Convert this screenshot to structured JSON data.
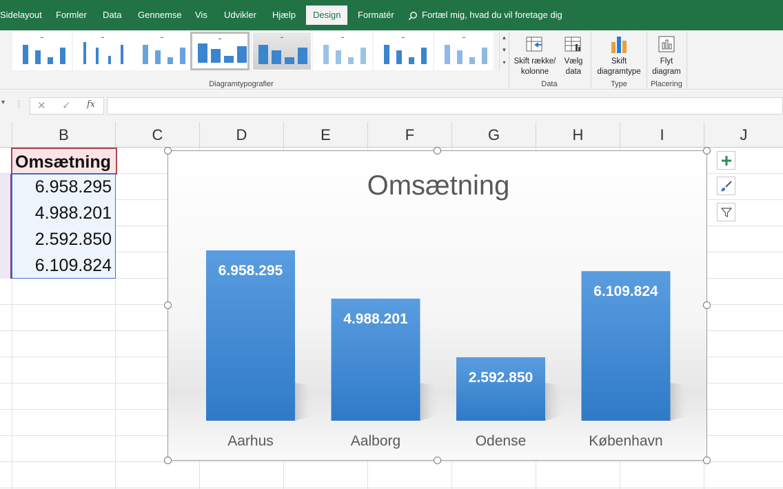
{
  "ribbon": {
    "tabs": [
      {
        "label": "Sidelayout",
        "active": false
      },
      {
        "label": "Formler",
        "active": false
      },
      {
        "label": "Data",
        "active": false
      },
      {
        "label": "Gennemse",
        "active": false
      },
      {
        "label": "Vis",
        "active": false
      },
      {
        "label": "Udvikler",
        "active": false
      },
      {
        "label": "Hjælp",
        "active": false
      },
      {
        "label": "Design",
        "active": true
      },
      {
        "label": "Formatér",
        "active": false
      }
    ],
    "tell_me": "Fortæl mig, hvad du vil foretage dig",
    "groups": {
      "styles": "Diagramtypografier",
      "data": "Data",
      "type": "Type",
      "placement": "Placering"
    },
    "buttons": {
      "switch_line1": "Skift række/",
      "switch_line2": "kolonne",
      "select_line1": "Vælg",
      "select_line2": "data",
      "change_line1": "Skift",
      "change_line2": "diagramtype",
      "move_line1": "Flyt",
      "move_line2": "diagram"
    },
    "accent": "#217346"
  },
  "formula_bar": {
    "fx": "fx",
    "value": ""
  },
  "columns": [
    "B",
    "C",
    "D",
    "E",
    "F",
    "G",
    "H",
    "I",
    "J"
  ],
  "sheet": {
    "header": "Omsætning",
    "values": [
      "6.958.295",
      "4.988.201",
      "2.592.850",
      "6.109.824"
    ]
  },
  "chart_data": {
    "type": "bar",
    "title": "Omsætning",
    "categories": [
      "Aarhus",
      "Aalborg",
      "Odense",
      "København"
    ],
    "values": [
      6958295,
      4988201,
      2592850,
      6109824
    ],
    "value_labels": [
      "6.958.295",
      "4.988.201",
      "2.592.850",
      "6.109.824"
    ],
    "bar_color": "#3c86d0",
    "grid": false,
    "legend": "none"
  }
}
